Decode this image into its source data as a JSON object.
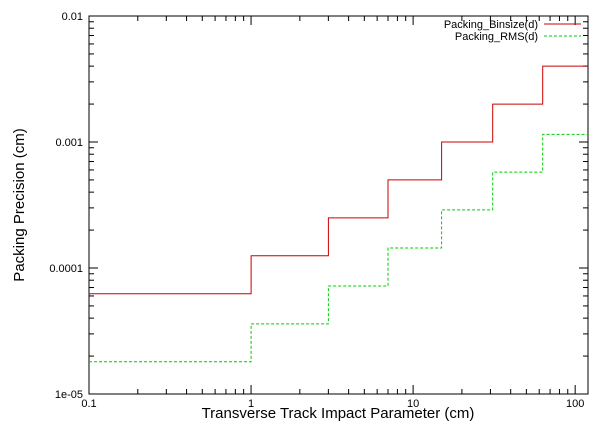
{
  "chart_data": {
    "type": "line",
    "step": true,
    "xlabel": "Transverse Track Impact Parameter (cm)",
    "ylabel": "Packing Precision (cm)",
    "xscale": "log",
    "yscale": "log",
    "xlim": [
      0.1,
      120
    ],
    "ylim": [
      1e-05,
      0.01
    ],
    "grid": false,
    "legend_position": "top-right",
    "x_ticks": [
      {
        "value": 0.1,
        "label": "0.1"
      },
      {
        "value": 1,
        "label": "1"
      },
      {
        "value": 10,
        "label": "10"
      },
      {
        "value": 100,
        "label": "100"
      }
    ],
    "y_ticks": [
      {
        "value": 1e-05,
        "label": "1e-05"
      },
      {
        "value": 0.0001,
        "label": "0.0001"
      },
      {
        "value": 0.001,
        "label": "0.001"
      },
      {
        "value": 0.01,
        "label": "0.01"
      }
    ],
    "series": [
      {
        "name": "Packing_Binsize(d)",
        "color": "#cc0000",
        "dash": "solid",
        "x": [
          0.1,
          1,
          3,
          7,
          15,
          31,
          63,
          120
        ],
        "y": [
          6.25e-05,
          0.000125,
          0.00025,
          0.0005,
          0.001,
          0.002,
          0.004,
          0.004
        ]
      },
      {
        "name": "Packing_RMS(d)",
        "color": "#00cc00",
        "dash": "dashed",
        "x": [
          0.1,
          1,
          3,
          7,
          15,
          31,
          63,
          120
        ],
        "y": [
          1.8e-05,
          3.6e-05,
          7.2e-05,
          0.000144,
          0.000289,
          0.000577,
          0.00115,
          0.00115
        ]
      }
    ]
  }
}
